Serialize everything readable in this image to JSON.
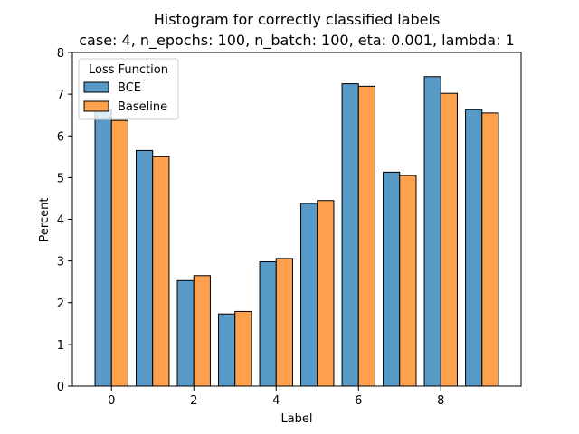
{
  "chart_data": {
    "type": "bar",
    "title": "Histogram for correctly classified labels",
    "subtitle": "case: 4, n_epochs: 100, n_batch: 100, eta: 0.001, lambda: 1",
    "xlabel": "Label",
    "ylabel": "Percent",
    "categories": [
      0,
      1,
      2,
      3,
      4,
      5,
      6,
      7,
      8,
      9
    ],
    "x_ticks": [
      "0",
      "2",
      "4",
      "6",
      "8"
    ],
    "y_ticks": [
      "0",
      "1",
      "2",
      "3",
      "4",
      "5",
      "6",
      "7",
      "8"
    ],
    "xlim": [
      -0.95,
      9.95
    ],
    "ylim": [
      0,
      8
    ],
    "legend": {
      "title": "Loss Function",
      "position": "top-left"
    },
    "series": [
      {
        "name": "BCE",
        "color": "#5799c7",
        "values": [
          6.63,
          5.65,
          2.53,
          1.73,
          2.98,
          4.38,
          7.25,
          5.13,
          7.42,
          6.63
        ]
      },
      {
        "name": "Baseline",
        "color": "#ffa04d",
        "values": [
          6.37,
          5.5,
          2.65,
          1.79,
          3.06,
          4.45,
          7.19,
          5.05,
          7.02,
          6.55
        ]
      }
    ]
  }
}
